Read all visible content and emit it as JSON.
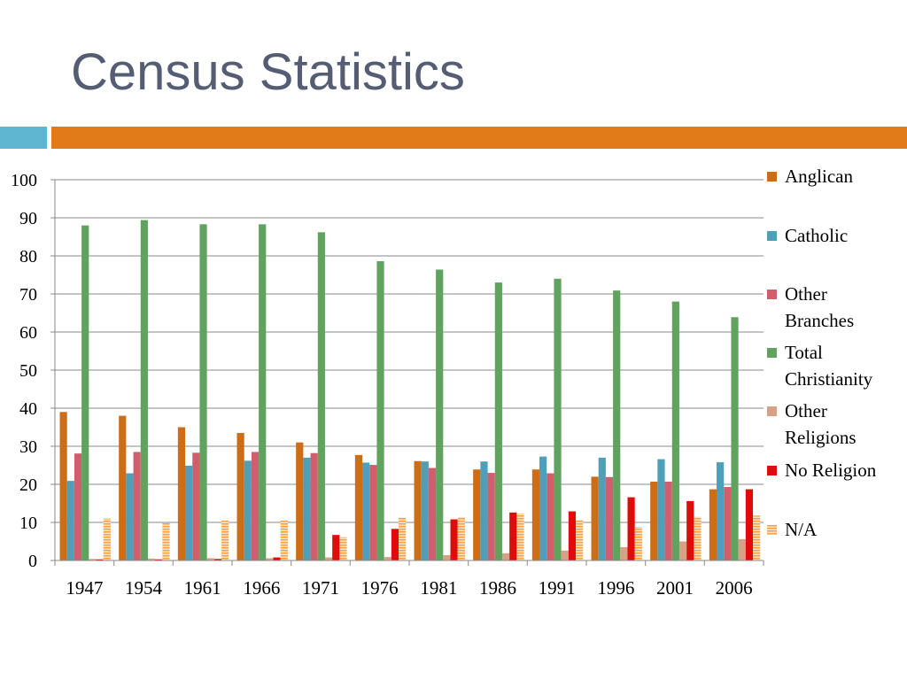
{
  "slide": {
    "title": "Census Statistics"
  },
  "chart_data": {
    "type": "bar",
    "categories": [
      "1947",
      "1954",
      "1961",
      "1966",
      "1971",
      "1976",
      "1981",
      "1986",
      "1991",
      "1996",
      "2001",
      "2006"
    ],
    "ylim": [
      0,
      100
    ],
    "yticks": [
      "0",
      "10",
      "20",
      "30",
      "40",
      "50",
      "60",
      "70",
      "80",
      "90",
      "100"
    ],
    "grid": true,
    "legend_placement": "right",
    "series": [
      {
        "name": "Anglican",
        "color": "#cc6d17",
        "values": [
          39,
          38,
          35,
          33.5,
          31,
          27.7,
          26.1,
          23.9,
          23.9,
          22,
          20.7,
          18.7
        ]
      },
      {
        "name": "Catholic",
        "color": "#4f9fb8",
        "values": [
          20.9,
          22.9,
          24.9,
          26.2,
          27,
          25.7,
          26,
          26,
          27.3,
          27,
          26.6,
          25.8
        ]
      },
      {
        "name": "Other Branches",
        "color": "#d05f6e",
        "values": [
          28.1,
          28.5,
          28.3,
          28.5,
          28.2,
          25.1,
          24.3,
          23,
          22.9,
          21.9,
          20.7,
          19.3
        ]
      },
      {
        "name": "Total Christianity",
        "color": "#5fa35f",
        "values": [
          88,
          89.4,
          88.3,
          88.3,
          86.2,
          78.6,
          76.4,
          73,
          74,
          70.9,
          68,
          63.9
        ]
      },
      {
        "name": "Other Religions",
        "color": "#d8a085",
        "values": [
          0.4,
          0.5,
          0.6,
          0.6,
          0.8,
          0.9,
          1.4,
          1.9,
          2.6,
          3.5,
          5,
          5.6
        ]
      },
      {
        "name": "No Religion",
        "color": "#e00c0c",
        "values": [
          0.3,
          0.3,
          0.4,
          0.8,
          6.7,
          8.3,
          10.8,
          12.6,
          12.9,
          16.6,
          15.6,
          18.7
        ]
      },
      {
        "name": "N/A",
        "color": "#f3a24a",
        "pattern": "horizontal-stripes",
        "values": [
          11,
          9.8,
          10.5,
          10.5,
          6.1,
          11.3,
          11.4,
          12.3,
          10.6,
          8.8,
          11.5,
          11.8
        ]
      }
    ]
  }
}
